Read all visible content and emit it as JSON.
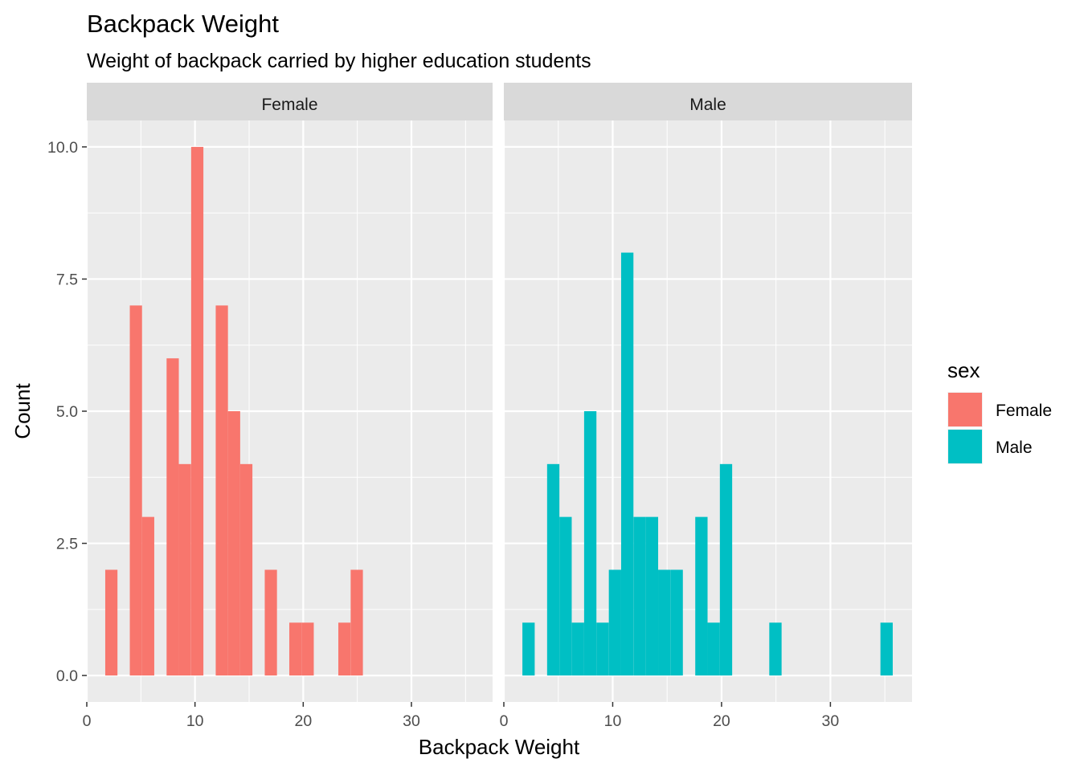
{
  "chart_data": {
    "type": "bar",
    "chart_subtype": "faceted histogram",
    "title": "Backpack Weight",
    "subtitle": "Weight of backpack carried by higher education students",
    "xlabel": "Backpack Weight",
    "ylabel": "Count",
    "xlim": [
      0,
      37.5
    ],
    "ylim": [
      -0.5,
      10.5
    ],
    "x_ticks": [
      0,
      10,
      20,
      30
    ],
    "y_ticks": [
      0,
      2.5,
      5,
      7.5,
      10
    ],
    "y_tick_labels": [
      "0.0",
      "2.5",
      "5.0",
      "7.5",
      "10.0"
    ],
    "bin_width": 1.13,
    "grid": true,
    "legend": {
      "title": "sex",
      "position": "right",
      "entries": [
        {
          "label": "Female",
          "color": "#F8766D"
        },
        {
          "label": "Male",
          "color": "#00BFC4"
        }
      ]
    },
    "facets": [
      {
        "label": "Female",
        "color": "#F8766D",
        "bins": [
          {
            "x": 2.27,
            "count": 2
          },
          {
            "x": 4.54,
            "count": 7
          },
          {
            "x": 5.67,
            "count": 3
          },
          {
            "x": 7.94,
            "count": 6
          },
          {
            "x": 9.07,
            "count": 4
          },
          {
            "x": 10.21,
            "count": 10
          },
          {
            "x": 12.48,
            "count": 7
          },
          {
            "x": 13.61,
            "count": 5
          },
          {
            "x": 14.74,
            "count": 4
          },
          {
            "x": 17.01,
            "count": 2
          },
          {
            "x": 19.28,
            "count": 1
          },
          {
            "x": 20.41,
            "count": 1
          },
          {
            "x": 23.81,
            "count": 1
          },
          {
            "x": 24.95,
            "count": 2
          }
        ]
      },
      {
        "label": "Male",
        "color": "#00BFC4",
        "bins": [
          {
            "x": 2.27,
            "count": 1
          },
          {
            "x": 4.54,
            "count": 4
          },
          {
            "x": 5.67,
            "count": 3
          },
          {
            "x": 6.81,
            "count": 1
          },
          {
            "x": 7.94,
            "count": 5
          },
          {
            "x": 9.07,
            "count": 1
          },
          {
            "x": 10.21,
            "count": 2
          },
          {
            "x": 11.34,
            "count": 8
          },
          {
            "x": 12.48,
            "count": 3
          },
          {
            "x": 13.61,
            "count": 3
          },
          {
            "x": 14.74,
            "count": 2
          },
          {
            "x": 15.88,
            "count": 2
          },
          {
            "x": 18.15,
            "count": 3
          },
          {
            "x": 19.28,
            "count": 1
          },
          {
            "x": 20.41,
            "count": 4
          },
          {
            "x": 24.95,
            "count": 1
          },
          {
            "x": 35.16,
            "count": 1
          }
        ]
      }
    ]
  }
}
